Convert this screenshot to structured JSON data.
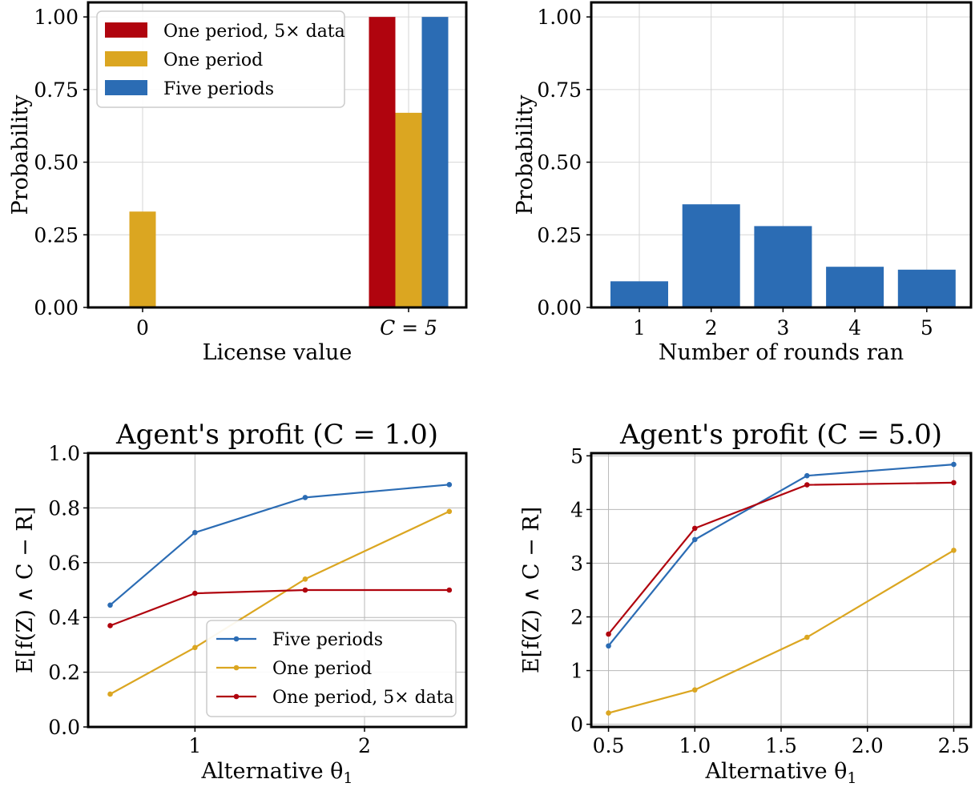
{
  "colors": {
    "red": "#b0040e",
    "gold": "#dba621",
    "blue": "#2b6cb4"
  },
  "chart_data": [
    {
      "type": "bar",
      "title": "",
      "xlabel": "License value",
      "ylabel": "Probability",
      "categories": [
        "0",
        "C = 5"
      ],
      "ylim": [
        0,
        1.05
      ],
      "yticks": [
        "0.00",
        "0.25",
        "0.50",
        "0.75",
        "1.00"
      ],
      "grid": true,
      "legend": "top-left",
      "series": [
        {
          "name": "One period, 5× data",
          "color": "red",
          "values": [
            0.0,
            1.0
          ]
        },
        {
          "name": "One period",
          "color": "gold",
          "values": [
            0.33,
            0.67
          ]
        },
        {
          "name": "Five periods",
          "color": "blue",
          "values": [
            0.0,
            1.0
          ]
        }
      ]
    },
    {
      "type": "bar",
      "title": "",
      "xlabel": "Number of rounds ran",
      "ylabel": "Probability",
      "categories": [
        "1",
        "2",
        "3",
        "4",
        "5"
      ],
      "ylim": [
        0,
        1.05
      ],
      "yticks": [
        "0.00",
        "0.25",
        "0.50",
        "0.75",
        "1.00"
      ],
      "grid": true,
      "series": [
        {
          "name": "",
          "color": "blue",
          "values": [
            0.09,
            0.355,
            0.28,
            0.14,
            0.13
          ]
        }
      ]
    },
    {
      "type": "line",
      "title": "Agent's profit (C = 1.0)",
      "xlabel": "Alternative θ",
      "xlabel_sub": "1",
      "ylabel": "E[f(Z) ∧ C − R]",
      "xlim": [
        0.37,
        2.6
      ],
      "ylim": [
        0,
        1.0
      ],
      "xticks": [
        "1",
        "2"
      ],
      "yticks": [
        "0.0",
        "0.2",
        "0.4",
        "0.6",
        "0.8",
        "1.0"
      ],
      "grid": true,
      "legend": "lower-right",
      "x": [
        0.5,
        1.0,
        1.65,
        2.5
      ],
      "series": [
        {
          "name": "Five periods",
          "color": "blue",
          "values": [
            0.445,
            0.71,
            0.838,
            0.885
          ]
        },
        {
          "name": "One period",
          "color": "gold",
          "values": [
            0.12,
            0.29,
            0.54,
            0.787
          ]
        },
        {
          "name": "One period, 5× data",
          "color": "red",
          "values": [
            0.37,
            0.488,
            0.5,
            0.5
          ]
        }
      ]
    },
    {
      "type": "line",
      "title": "Agent's profit (C = 5.0)",
      "xlabel": "Alternative θ",
      "xlabel_sub": "1",
      "ylabel": "E[f(Z) ∧ C − R]",
      "xlim": [
        0.4,
        2.6
      ],
      "ylim": [
        -0.05,
        5.05
      ],
      "xticks": [
        "0.5",
        "1.0",
        "1.5",
        "2.0",
        "2.5"
      ],
      "yticks": [
        "0",
        "1",
        "2",
        "3",
        "4",
        "5"
      ],
      "grid": true,
      "x": [
        0.5,
        1.0,
        1.65,
        2.5
      ],
      "series": [
        {
          "name": "Five periods",
          "color": "blue",
          "values": [
            1.46,
            3.44,
            4.63,
            4.84
          ]
        },
        {
          "name": "One period",
          "color": "gold",
          "values": [
            0.21,
            0.64,
            1.62,
            3.24
          ]
        },
        {
          "name": "One period, 5× data",
          "color": "red",
          "values": [
            1.68,
            3.65,
            4.46,
            4.5
          ]
        }
      ]
    }
  ]
}
